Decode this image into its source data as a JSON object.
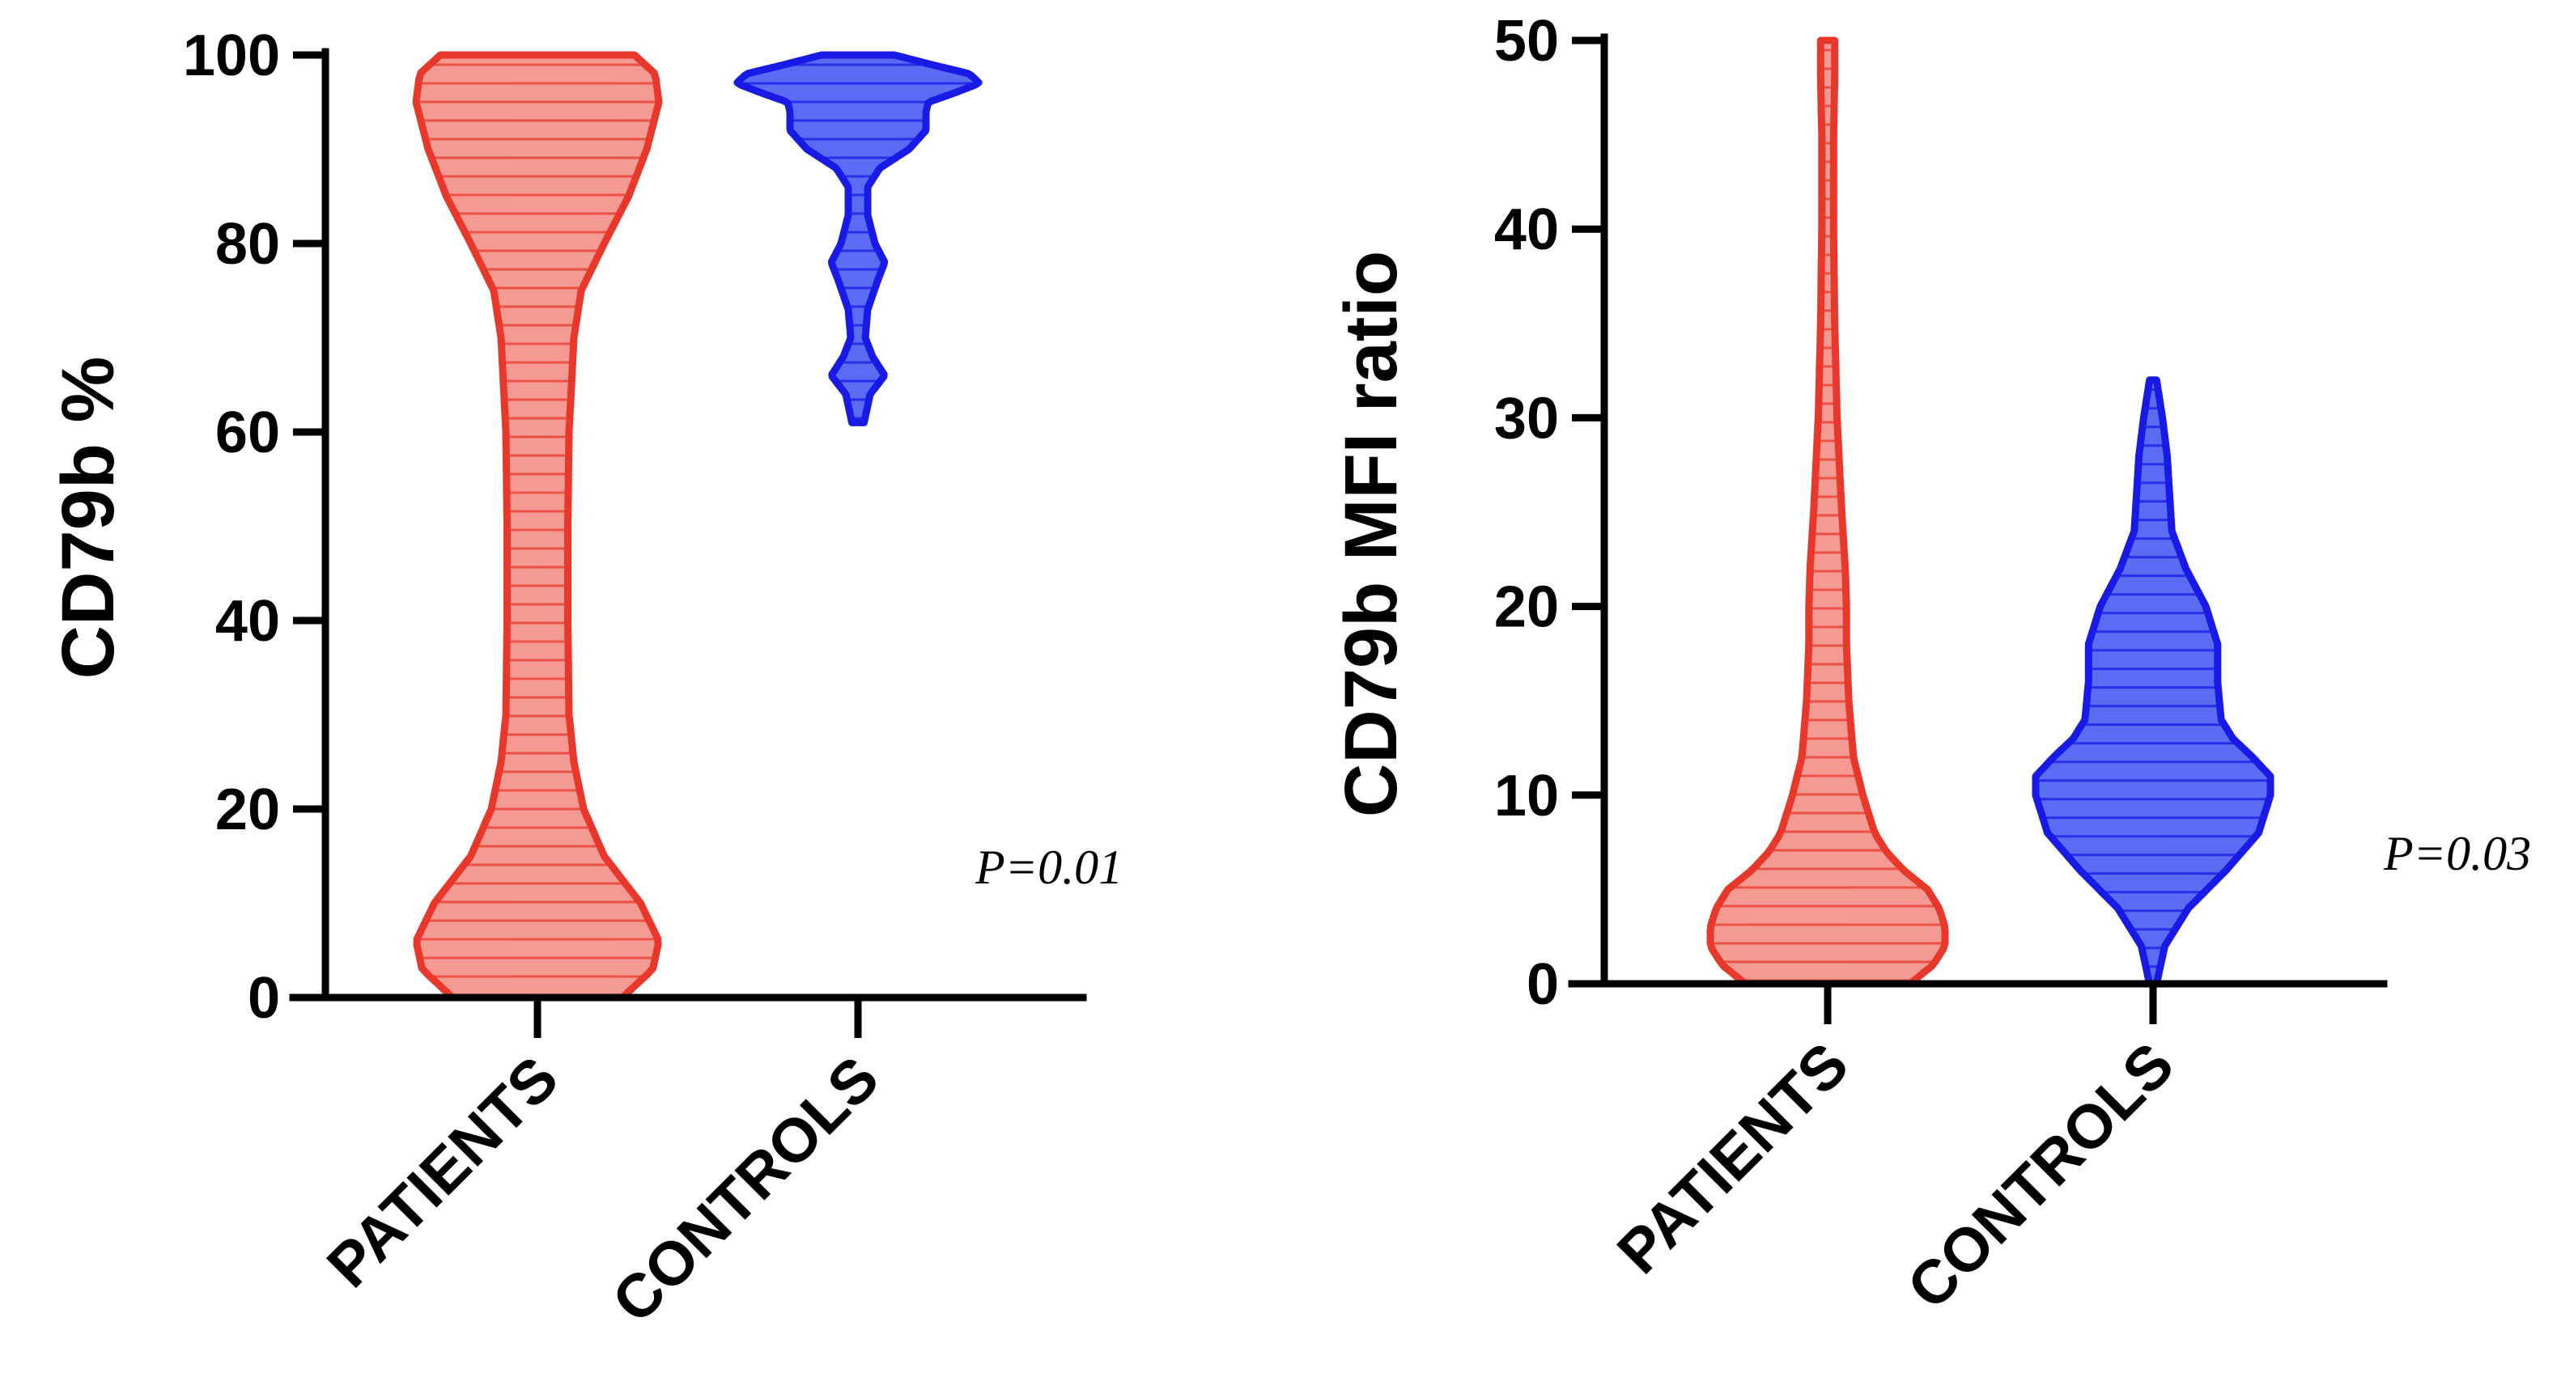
{
  "chart_data": [
    {
      "type": "violin",
      "title": "",
      "xlabel": "",
      "ylabel": "CD79b %",
      "ylim": [
        0,
        100
      ],
      "yticks": [
        0,
        20,
        40,
        60,
        80,
        100
      ],
      "categories": [
        "PATIENTS",
        "CONTROLS"
      ],
      "annotation": "P=0.01",
      "grid": false,
      "series": [
        {
          "category": "PATIENTS",
          "color": "#e8382b",
          "fill": "#f49a92",
          "range": [
            0,
            100
          ],
          "profile": [
            [
              0,
              0.7
            ],
            [
              3,
              0.95
            ],
            [
              6,
              1.0
            ],
            [
              10,
              0.85
            ],
            [
              15,
              0.55
            ],
            [
              20,
              0.38
            ],
            [
              25,
              0.3
            ],
            [
              30,
              0.26
            ],
            [
              40,
              0.25
            ],
            [
              50,
              0.25
            ],
            [
              60,
              0.26
            ],
            [
              70,
              0.3
            ],
            [
              75,
              0.36
            ],
            [
              80,
              0.55
            ],
            [
              85,
              0.75
            ],
            [
              90,
              0.9
            ],
            [
              95,
              1.0
            ],
            [
              98,
              0.97
            ],
            [
              100,
              0.8
            ]
          ]
        },
        {
          "category": "CONTROLS",
          "color": "#1a1ae6",
          "fill": "#5a6cf2",
          "range": [
            61,
            100
          ],
          "profile": [
            [
              61,
              0.05
            ],
            [
              64,
              0.1
            ],
            [
              66,
              0.22
            ],
            [
              68,
              0.12
            ],
            [
              70,
              0.06
            ],
            [
              73,
              0.08
            ],
            [
              76,
              0.16
            ],
            [
              78,
              0.22
            ],
            [
              80,
              0.14
            ],
            [
              83,
              0.08
            ],
            [
              86,
              0.08
            ],
            [
              88,
              0.18
            ],
            [
              90,
              0.42
            ],
            [
              92,
              0.56
            ],
            [
              94,
              0.56
            ],
            [
              95,
              0.58
            ],
            [
              96,
              0.8
            ],
            [
              97,
              1.0
            ],
            [
              98,
              0.92
            ],
            [
              99,
              0.6
            ],
            [
              100,
              0.3
            ]
          ]
        }
      ]
    },
    {
      "type": "violin",
      "title": "",
      "xlabel": "",
      "ylabel": "CD79b MFI ratio",
      "ylim": [
        0,
        50
      ],
      "yticks": [
        0,
        10,
        20,
        30,
        40,
        50
      ],
      "categories": [
        "PATIENTS",
        "CONTROLS"
      ],
      "annotation": "P=0.03",
      "grid": false,
      "series": [
        {
          "category": "PATIENTS",
          "color": "#e8382b",
          "fill": "#f49a92",
          "range": [
            0,
            50
          ],
          "profile": [
            [
              0,
              0.7
            ],
            [
              1,
              0.9
            ],
            [
              2,
              1.0
            ],
            [
              3,
              1.0
            ],
            [
              4,
              0.95
            ],
            [
              5,
              0.85
            ],
            [
              6,
              0.65
            ],
            [
              7,
              0.5
            ],
            [
              8,
              0.4
            ],
            [
              10,
              0.3
            ],
            [
              12,
              0.22
            ],
            [
              15,
              0.18
            ],
            [
              18,
              0.16
            ],
            [
              20,
              0.16
            ],
            [
              22,
              0.15
            ],
            [
              25,
              0.12
            ],
            [
              30,
              0.08
            ],
            [
              35,
              0.06
            ],
            [
              40,
              0.05
            ],
            [
              45,
              0.05
            ],
            [
              48,
              0.06
            ],
            [
              50,
              0.06
            ]
          ]
        },
        {
          "category": "CONTROLS",
          "color": "#1a1ae6",
          "fill": "#5a6cf2",
          "range": [
            0,
            32
          ],
          "profile": [
            [
              0,
              0.03
            ],
            [
              2,
              0.1
            ],
            [
              4,
              0.3
            ],
            [
              6,
              0.62
            ],
            [
              8,
              0.9
            ],
            [
              10,
              1.0
            ],
            [
              11,
              1.0
            ],
            [
              12,
              0.85
            ],
            [
              13,
              0.68
            ],
            [
              14,
              0.58
            ],
            [
              16,
              0.55
            ],
            [
              18,
              0.55
            ],
            [
              20,
              0.45
            ],
            [
              22,
              0.28
            ],
            [
              24,
              0.16
            ],
            [
              26,
              0.14
            ],
            [
              28,
              0.12
            ],
            [
              30,
              0.08
            ],
            [
              32,
              0.03
            ]
          ]
        }
      ]
    }
  ]
}
